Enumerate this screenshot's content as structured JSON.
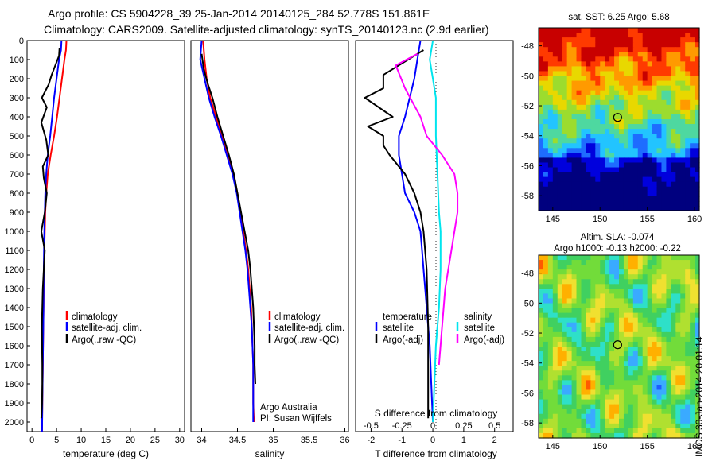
{
  "title": {
    "line1": "Argo profile: CS 5904228_39 25-Jan-2014 20140125_284 52.778S 151.861E",
    "line2": "Climatology: CARS2009. Satellite-adjusted climatology: synTS_20140123.nc (2.9d earlier)"
  },
  "colors": {
    "climatology": "#ff0000",
    "satellite": "#0000ff",
    "argo": "#000000",
    "sat_salinity": "#00e5ee",
    "argo_salinity": "#ff00ff"
  },
  "legend_profile": {
    "clim": "climatology",
    "sat": "satellite-adj. clim.",
    "argo": "Argo(..raw -QC)"
  },
  "legend_diff": {
    "temp_head": "temperature",
    "sal_head": "salinity",
    "sat": "satellite",
    "argo": "Argo(-adj)"
  },
  "argo_credit": {
    "line1": "Argo Australia",
    "line2": "PI: Susan Wijffels"
  },
  "map_sst": {
    "title": "sat. SST: 6.25 Argo: 5.68",
    "colorscale": [
      "#00007f",
      "#0000dd",
      "#1e6cff",
      "#22c4ff",
      "#4ed8a0",
      "#9cdc2e",
      "#e8d800",
      "#ff9a00",
      "#ff3a00",
      "#c80000"
    ]
  },
  "map_sla": {
    "title1": "Altim. SLA: -0.074",
    "title2": "Argo h1000: -0.13 h2000: -0.22"
  },
  "stamp": "IMOS 30-Jan-2014 20:01:14",
  "chart_data": [
    {
      "type": "line",
      "xlabel": "temperature (deg C)",
      "xlim": [
        -1,
        31
      ],
      "ylim": [
        2050,
        0
      ],
      "xticks": [
        0,
        5,
        10,
        15,
        20,
        25,
        30
      ],
      "yticks": [
        0,
        100,
        200,
        300,
        400,
        500,
        600,
        700,
        800,
        900,
        1000,
        1100,
        1200,
        1300,
        1400,
        1500,
        1600,
        1700,
        1800,
        1900,
        2000
      ],
      "series": [
        {
          "name": "climatology",
          "color": "#ff0000",
          "x": [
            7.0,
            6.9,
            6.6,
            6.1,
            5.6,
            5.1,
            4.5,
            3.8,
            3.2,
            2.9,
            2.7,
            2.6,
            2.5,
            2.45,
            2.35,
            2.3,
            2.25,
            2.2,
            2.15,
            2.1,
            2.05
          ],
          "y": [
            0,
            50,
            100,
            200,
            300,
            400,
            500,
            600,
            700,
            800,
            900,
            1000,
            1100,
            1200,
            1400,
            1500,
            1600,
            1700,
            1800,
            1900,
            2050
          ]
        },
        {
          "name": "satellite-adj. clim.",
          "color": "#0000ff",
          "x": [
            6.0,
            5.9,
            5.5,
            5.0,
            4.5,
            4.1,
            3.7,
            3.2,
            2.9,
            2.7,
            2.6,
            2.5,
            2.45,
            2.4,
            2.35,
            2.3,
            2.25,
            2.2,
            2.15,
            2.1,
            2.05
          ],
          "y": [
            0,
            50,
            100,
            200,
            300,
            400,
            500,
            600,
            700,
            800,
            900,
            1000,
            1100,
            1200,
            1400,
            1500,
            1600,
            1700,
            1800,
            1900,
            2050
          ]
        },
        {
          "name": "Argo(..raw -QC)",
          "color": "#000000",
          "x": [
            5.6,
            5.5,
            4.0,
            3.4,
            2.0,
            3.0,
            1.9,
            2.9,
            3.3,
            2.2,
            2.4,
            3.0,
            2.6,
            1.9,
            2.6,
            2.2,
            2.0,
            2.1,
            2.1,
            2.05,
            1.9
          ],
          "y": [
            40,
            80,
            180,
            230,
            300,
            350,
            430,
            520,
            600,
            660,
            720,
            800,
            900,
            1000,
            1100,
            1300,
            1500,
            1700,
            1800,
            1900,
            1980
          ]
        }
      ]
    },
    {
      "type": "line",
      "xlabel": "salinity",
      "xlim": [
        33.85,
        36.05
      ],
      "ylim": [
        2050,
        0
      ],
      "xticks": [
        34,
        34.5,
        35,
        35.5,
        36
      ],
      "series": [
        {
          "name": "climatology",
          "color": "#ff0000",
          "x": [
            34.02,
            34.04,
            34.07,
            34.12,
            34.2,
            34.28,
            34.36,
            34.44,
            34.5,
            34.54,
            34.58,
            34.62,
            34.65,
            34.67,
            34.69,
            34.7,
            34.71,
            34.72,
            34.72,
            34.73
          ],
          "y": [
            0,
            100,
            200,
            300,
            400,
            500,
            600,
            700,
            800,
            900,
            1000,
            1100,
            1200,
            1300,
            1400,
            1500,
            1600,
            1700,
            1900,
            2000
          ]
        },
        {
          "name": "satellite-adj. clim.",
          "color": "#0000ff",
          "x": [
            34.0,
            33.98,
            34.04,
            34.1,
            34.18,
            34.27,
            34.35,
            34.43,
            34.49,
            34.53,
            34.57,
            34.61,
            34.64,
            34.66,
            34.68,
            34.7,
            34.71,
            34.72,
            34.72,
            34.72
          ],
          "y": [
            0,
            100,
            200,
            300,
            400,
            500,
            600,
            700,
            800,
            900,
            1000,
            1100,
            1200,
            1300,
            1400,
            1500,
            1600,
            1700,
            1900,
            2000
          ]
        },
        {
          "name": "Argo(..raw -QC)",
          "color": "#000000",
          "x": [
            34.0,
            34.03,
            34.08,
            34.15,
            34.22,
            34.3,
            34.38,
            34.45,
            34.5,
            34.55,
            34.6,
            34.65,
            34.68,
            34.7,
            34.72,
            34.73,
            34.74,
            34.74,
            34.75
          ],
          "y": [
            70,
            150,
            220,
            300,
            400,
            500,
            600,
            700,
            800,
            900,
            1000,
            1100,
            1200,
            1300,
            1400,
            1500,
            1600,
            1700,
            1800
          ]
        }
      ]
    },
    {
      "type": "line",
      "xlabel": "T difference from climatology",
      "xlabel2": "S difference from climatology",
      "xlim": [
        -2.5,
        2.6
      ],
      "ylim": [
        2050,
        0
      ],
      "xticks": [
        -2,
        -1,
        0,
        1,
        2
      ],
      "xticks2": [
        "-0.5",
        "-0.25",
        "0",
        "0.25",
        "0.5"
      ],
      "xticks2_pos": [
        -2,
        -1,
        0,
        1,
        2
      ],
      "series": [
        {
          "name": "satellite (temperature)",
          "color": "#0000ff",
          "x": [
            -0.4,
            -0.5,
            -0.6,
            -0.9,
            -1.1,
            -1.1,
            -1.0,
            -0.9,
            -0.6,
            -0.4,
            -0.35,
            -0.3,
            -0.25,
            -0.2,
            -0.15,
            -0.1,
            -0.05,
            0.0
          ],
          "y": [
            0,
            100,
            200,
            400,
            500,
            600,
            700,
            800,
            900,
            1000,
            1100,
            1200,
            1300,
            1400,
            1500,
            1600,
            1800,
            2000
          ]
        },
        {
          "name": "Argo(-adj) (temperature)",
          "color": "#000000",
          "x": [
            -0.3,
            -1.6,
            -1.6,
            -2.2,
            -1.3,
            -2.1,
            -1.6,
            -1.6,
            -1.4,
            -0.9,
            -0.6,
            -0.4,
            -0.3,
            -0.2,
            -0.15,
            -0.15
          ],
          "y": [
            50,
            180,
            250,
            300,
            400,
            450,
            500,
            550,
            600,
            700,
            800,
            900,
            1000,
            1200,
            1500,
            1980
          ]
        },
        {
          "name": "satellite (salinity)",
          "color": "#00e5ee",
          "x": [
            0.0,
            -0.1,
            0.0,
            0.1,
            0.1,
            0.15,
            0.2,
            0.25,
            0.25,
            0.2,
            0.1,
            0.05,
            0.0
          ],
          "y": [
            0,
            100,
            200,
            300,
            500,
            700,
            900,
            1000,
            1200,
            1400,
            1600,
            1800,
            2000
          ]
        },
        {
          "name": "Argo(-adj) (salinity)",
          "color": "#ff00ff",
          "x": [
            -0.5,
            -1.2,
            -0.9,
            -0.4,
            -0.2,
            0.3,
            0.7,
            0.8,
            0.8,
            0.6,
            0.4,
            0.3,
            0.2
          ],
          "y": [
            70,
            130,
            250,
            400,
            500,
            600,
            700,
            800,
            900,
            1100,
            1300,
            1500,
            1700
          ]
        }
      ]
    },
    {
      "type": "heatmap",
      "title": "sat. SST: 6.25 Argo: 5.68",
      "xlim": [
        143.5,
        160.5
      ],
      "ylim": [
        -59,
        -46.8
      ],
      "xticks": [
        145,
        150,
        155,
        160
      ],
      "yticks": [
        -48,
        -50,
        -52,
        -54,
        -56,
        -58
      ],
      "marker": {
        "lon": 151.861,
        "lat": -52.778
      }
    },
    {
      "type": "heatmap",
      "title": "Altim. SLA: -0.074",
      "subtitle": "Argo h1000: -0.13 h2000: -0.22",
      "xlim": [
        143.5,
        160.5
      ],
      "ylim": [
        -59,
        -46.8
      ],
      "xticks": [
        145,
        150,
        155,
        160
      ],
      "yticks": [
        -48,
        -50,
        -52,
        -54,
        -56,
        -58
      ],
      "marker": {
        "lon": 151.861,
        "lat": -52.778
      }
    }
  ]
}
